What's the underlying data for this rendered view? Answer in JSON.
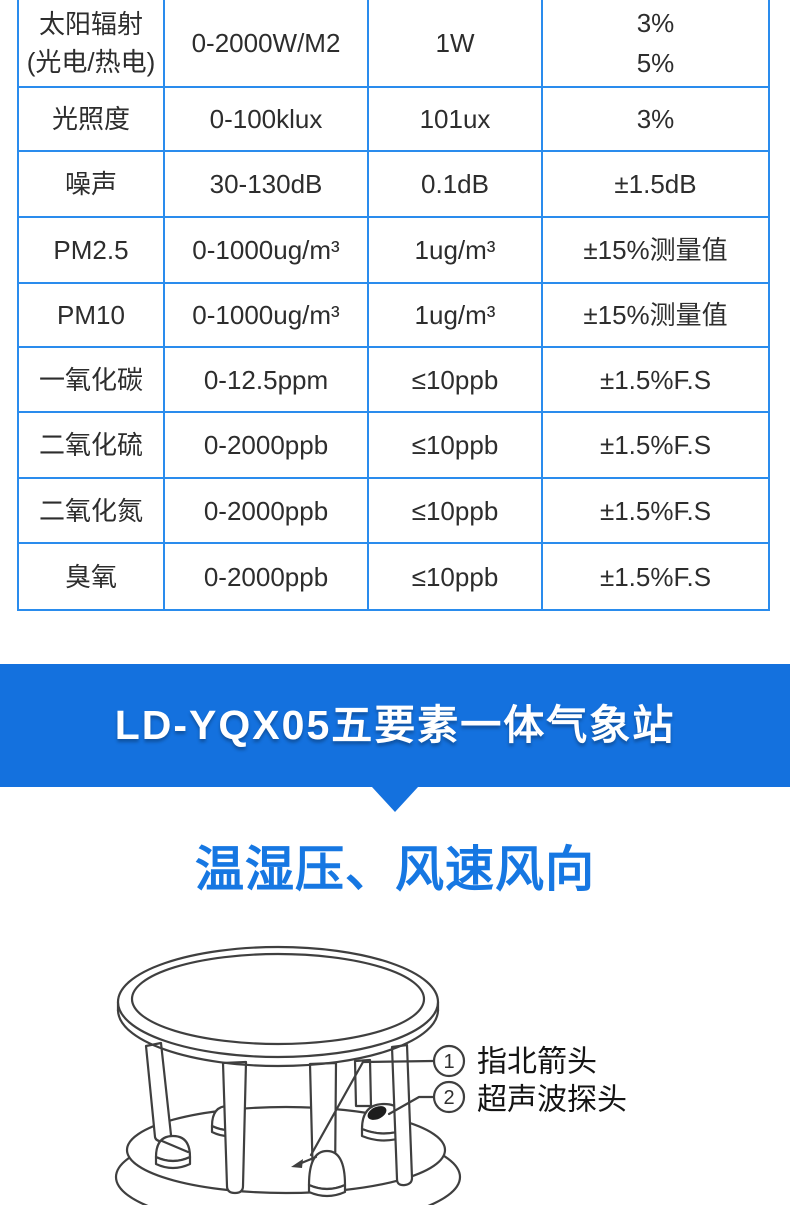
{
  "spec_table": {
    "border_color": "#2a8ced",
    "rows": [
      {
        "param": [
          "太阳辐射",
          "(光电/热电)"
        ],
        "range": "0-2000W/M2",
        "resolution": "1W",
        "accuracy": [
          "3%",
          "5%"
        ]
      },
      {
        "param": [
          "光照度"
        ],
        "range": "0-100klux",
        "resolution": "101ux",
        "accuracy": [
          "3%"
        ]
      },
      {
        "param": [
          "噪声"
        ],
        "range": "30-130dB",
        "resolution": "0.1dB",
        "accuracy": [
          "±1.5dB"
        ]
      },
      {
        "param": [
          "PM2.5"
        ],
        "range": "0-1000ug/m³",
        "resolution": "1ug/m³",
        "accuracy": [
          "±15%测量值"
        ]
      },
      {
        "param": [
          "PM10"
        ],
        "range": "0-1000ug/m³",
        "resolution": "1ug/m³",
        "accuracy": [
          "±15%测量值"
        ]
      },
      {
        "param": [
          "一氧化碳"
        ],
        "range": "0-12.5ppm",
        "resolution": "≤10ppb",
        "accuracy": [
          "±1.5%F.S"
        ]
      },
      {
        "param": [
          "二氧化硫"
        ],
        "range": "0-2000ppb",
        "resolution": "≤10ppb",
        "accuracy": [
          "±1.5%F.S"
        ]
      },
      {
        "param": [
          "二氧化氮"
        ],
        "range": "0-2000ppb",
        "resolution": "≤10ppb",
        "accuracy": [
          "±1.5%F.S"
        ]
      },
      {
        "param": [
          "臭氧"
        ],
        "range": "0-2000ppb",
        "resolution": "≤10ppb",
        "accuracy": [
          "±1.5%F.S"
        ]
      }
    ]
  },
  "banner": {
    "title": "LD-YQX05五要素一体气象站",
    "bg_color": "#1471de",
    "text_color": "#ffffff"
  },
  "section_heading": {
    "text": "温湿压、风速风向",
    "color": "#1677e2"
  },
  "diagram": {
    "line_color": "#3f3f3f",
    "callouts": [
      {
        "num": "1",
        "label": "指北箭头"
      },
      {
        "num": "2",
        "label": "超声波探头"
      }
    ]
  }
}
